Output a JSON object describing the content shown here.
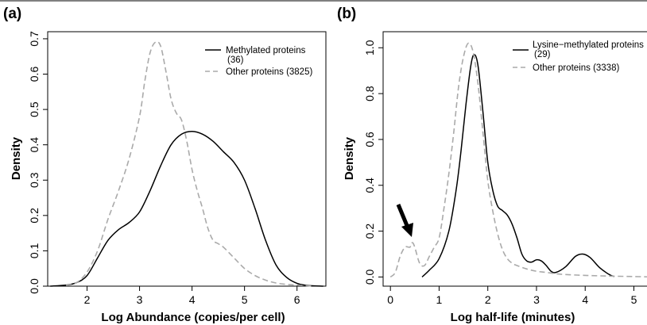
{
  "chart_data": [
    {
      "type": "line",
      "panel_label": "(a)",
      "xlabel": "Log Abundance (copies/per cell)",
      "ylabel": "Density",
      "xlim": [
        1.25,
        6.55
      ],
      "ylim": [
        0,
        0.72
      ],
      "xticks": [
        2,
        3,
        4,
        5,
        6
      ],
      "yticks": [
        0.0,
        0.1,
        0.2,
        0.3,
        0.4,
        0.5,
        0.6,
        0.7
      ],
      "ytick_labels": [
        "0.0",
        "0.1",
        "0.2",
        "0.3",
        "0.4",
        "0.5",
        "0.6",
        "0.7"
      ],
      "legend_position": "top-right",
      "series": [
        {
          "name": "Methylated proteins (36)",
          "legend_lines": [
            "Methylated proteins",
            "(36)"
          ],
          "style": "solid",
          "color": "#000000",
          "x": [
            1.3,
            1.6,
            1.8,
            2.0,
            2.2,
            2.4,
            2.6,
            2.8,
            3.0,
            3.2,
            3.4,
            3.6,
            3.8,
            4.0,
            4.2,
            4.4,
            4.6,
            4.8,
            5.0,
            5.2,
            5.4,
            5.6,
            5.8,
            6.0,
            6.2,
            6.5
          ],
          "y": [
            0.0,
            0.003,
            0.01,
            0.03,
            0.08,
            0.13,
            0.16,
            0.18,
            0.21,
            0.27,
            0.34,
            0.4,
            0.43,
            0.438,
            0.43,
            0.41,
            0.38,
            0.35,
            0.3,
            0.22,
            0.13,
            0.06,
            0.025,
            0.008,
            0.002,
            0.0
          ]
        },
        {
          "name": "Other proteins (3825)",
          "legend_lines": [
            "Other proteins (3825)"
          ],
          "style": "dashed",
          "color": "#aaaaaa",
          "x": [
            1.6,
            1.8,
            2.0,
            2.2,
            2.4,
            2.6,
            2.8,
            3.0,
            3.1,
            3.2,
            3.3,
            3.4,
            3.5,
            3.6,
            3.7,
            3.8,
            3.9,
            4.0,
            4.1,
            4.2,
            4.3,
            4.4,
            4.5,
            4.6,
            4.8,
            5.0,
            5.2,
            5.4,
            5.6,
            5.8,
            6.0,
            6.3
          ],
          "y": [
            0.002,
            0.01,
            0.04,
            0.1,
            0.19,
            0.27,
            0.36,
            0.48,
            0.58,
            0.66,
            0.69,
            0.68,
            0.61,
            0.53,
            0.49,
            0.47,
            0.41,
            0.33,
            0.27,
            0.22,
            0.165,
            0.13,
            0.12,
            0.11,
            0.08,
            0.05,
            0.03,
            0.017,
            0.009,
            0.005,
            0.003,
            0.0
          ]
        }
      ]
    },
    {
      "type": "line",
      "panel_label": "(b)",
      "xlabel": "Log half-life (minutes)",
      "ylabel": "Density",
      "xlim": [
        -0.15,
        5.4
      ],
      "ylim": [
        -0.04,
        1.07
      ],
      "xticks": [
        0,
        1,
        2,
        3,
        4,
        5
      ],
      "yticks": [
        0.0,
        0.2,
        0.4,
        0.6,
        0.8,
        1.0
      ],
      "ytick_labels": [
        "0.0",
        "0.2",
        "0.4",
        "0.6",
        "0.8",
        "1.0"
      ],
      "legend_position": "top-right",
      "annotation": "arrow pointing at small peak near x = 0.4",
      "series": [
        {
          "name": "Lysine-methylated proteins (29)",
          "legend_lines": [
            "Lysine−methylated proteins",
            "(29)"
          ],
          "style": "solid",
          "color": "#000000",
          "x": [
            0.65,
            0.8,
            1.0,
            1.2,
            1.35,
            1.45,
            1.55,
            1.65,
            1.72,
            1.8,
            1.9,
            2.0,
            2.1,
            2.2,
            2.3,
            2.4,
            2.5,
            2.6,
            2.7,
            2.8,
            2.9,
            3.0,
            3.1,
            3.2,
            3.3,
            3.4,
            3.6,
            3.8,
            3.95,
            4.1,
            4.3,
            4.5,
            4.6
          ],
          "y": [
            0.0,
            0.03,
            0.08,
            0.2,
            0.38,
            0.55,
            0.75,
            0.92,
            0.97,
            0.92,
            0.72,
            0.5,
            0.38,
            0.31,
            0.29,
            0.27,
            0.23,
            0.17,
            0.1,
            0.07,
            0.065,
            0.075,
            0.07,
            0.05,
            0.025,
            0.02,
            0.045,
            0.09,
            0.1,
            0.085,
            0.04,
            0.01,
            0.002
          ]
        },
        {
          "name": "Other proteins (3338)",
          "legend_lines": [
            "Other proteins (3338)"
          ],
          "style": "dashed",
          "color": "#aaaaaa",
          "x": [
            0.0,
            0.1,
            0.2,
            0.3,
            0.4,
            0.45,
            0.5,
            0.6,
            0.7,
            0.8,
            0.9,
            1.0,
            1.1,
            1.2,
            1.3,
            1.4,
            1.5,
            1.6,
            1.7,
            1.8,
            1.9,
            2.0,
            2.1,
            2.2,
            2.3,
            2.4,
            2.5,
            2.6,
            2.8,
            3.0,
            3.2,
            3.5,
            4.0,
            4.5,
            5.0,
            5.4
          ],
          "y": [
            0.0,
            0.02,
            0.09,
            0.13,
            0.13,
            0.15,
            0.13,
            0.06,
            0.05,
            0.09,
            0.13,
            0.17,
            0.3,
            0.45,
            0.63,
            0.83,
            0.96,
            1.02,
            0.98,
            0.84,
            0.63,
            0.42,
            0.29,
            0.19,
            0.12,
            0.08,
            0.06,
            0.05,
            0.035,
            0.025,
            0.02,
            0.012,
            0.007,
            0.004,
            0.002,
            0.0
          ]
        }
      ]
    }
  ]
}
